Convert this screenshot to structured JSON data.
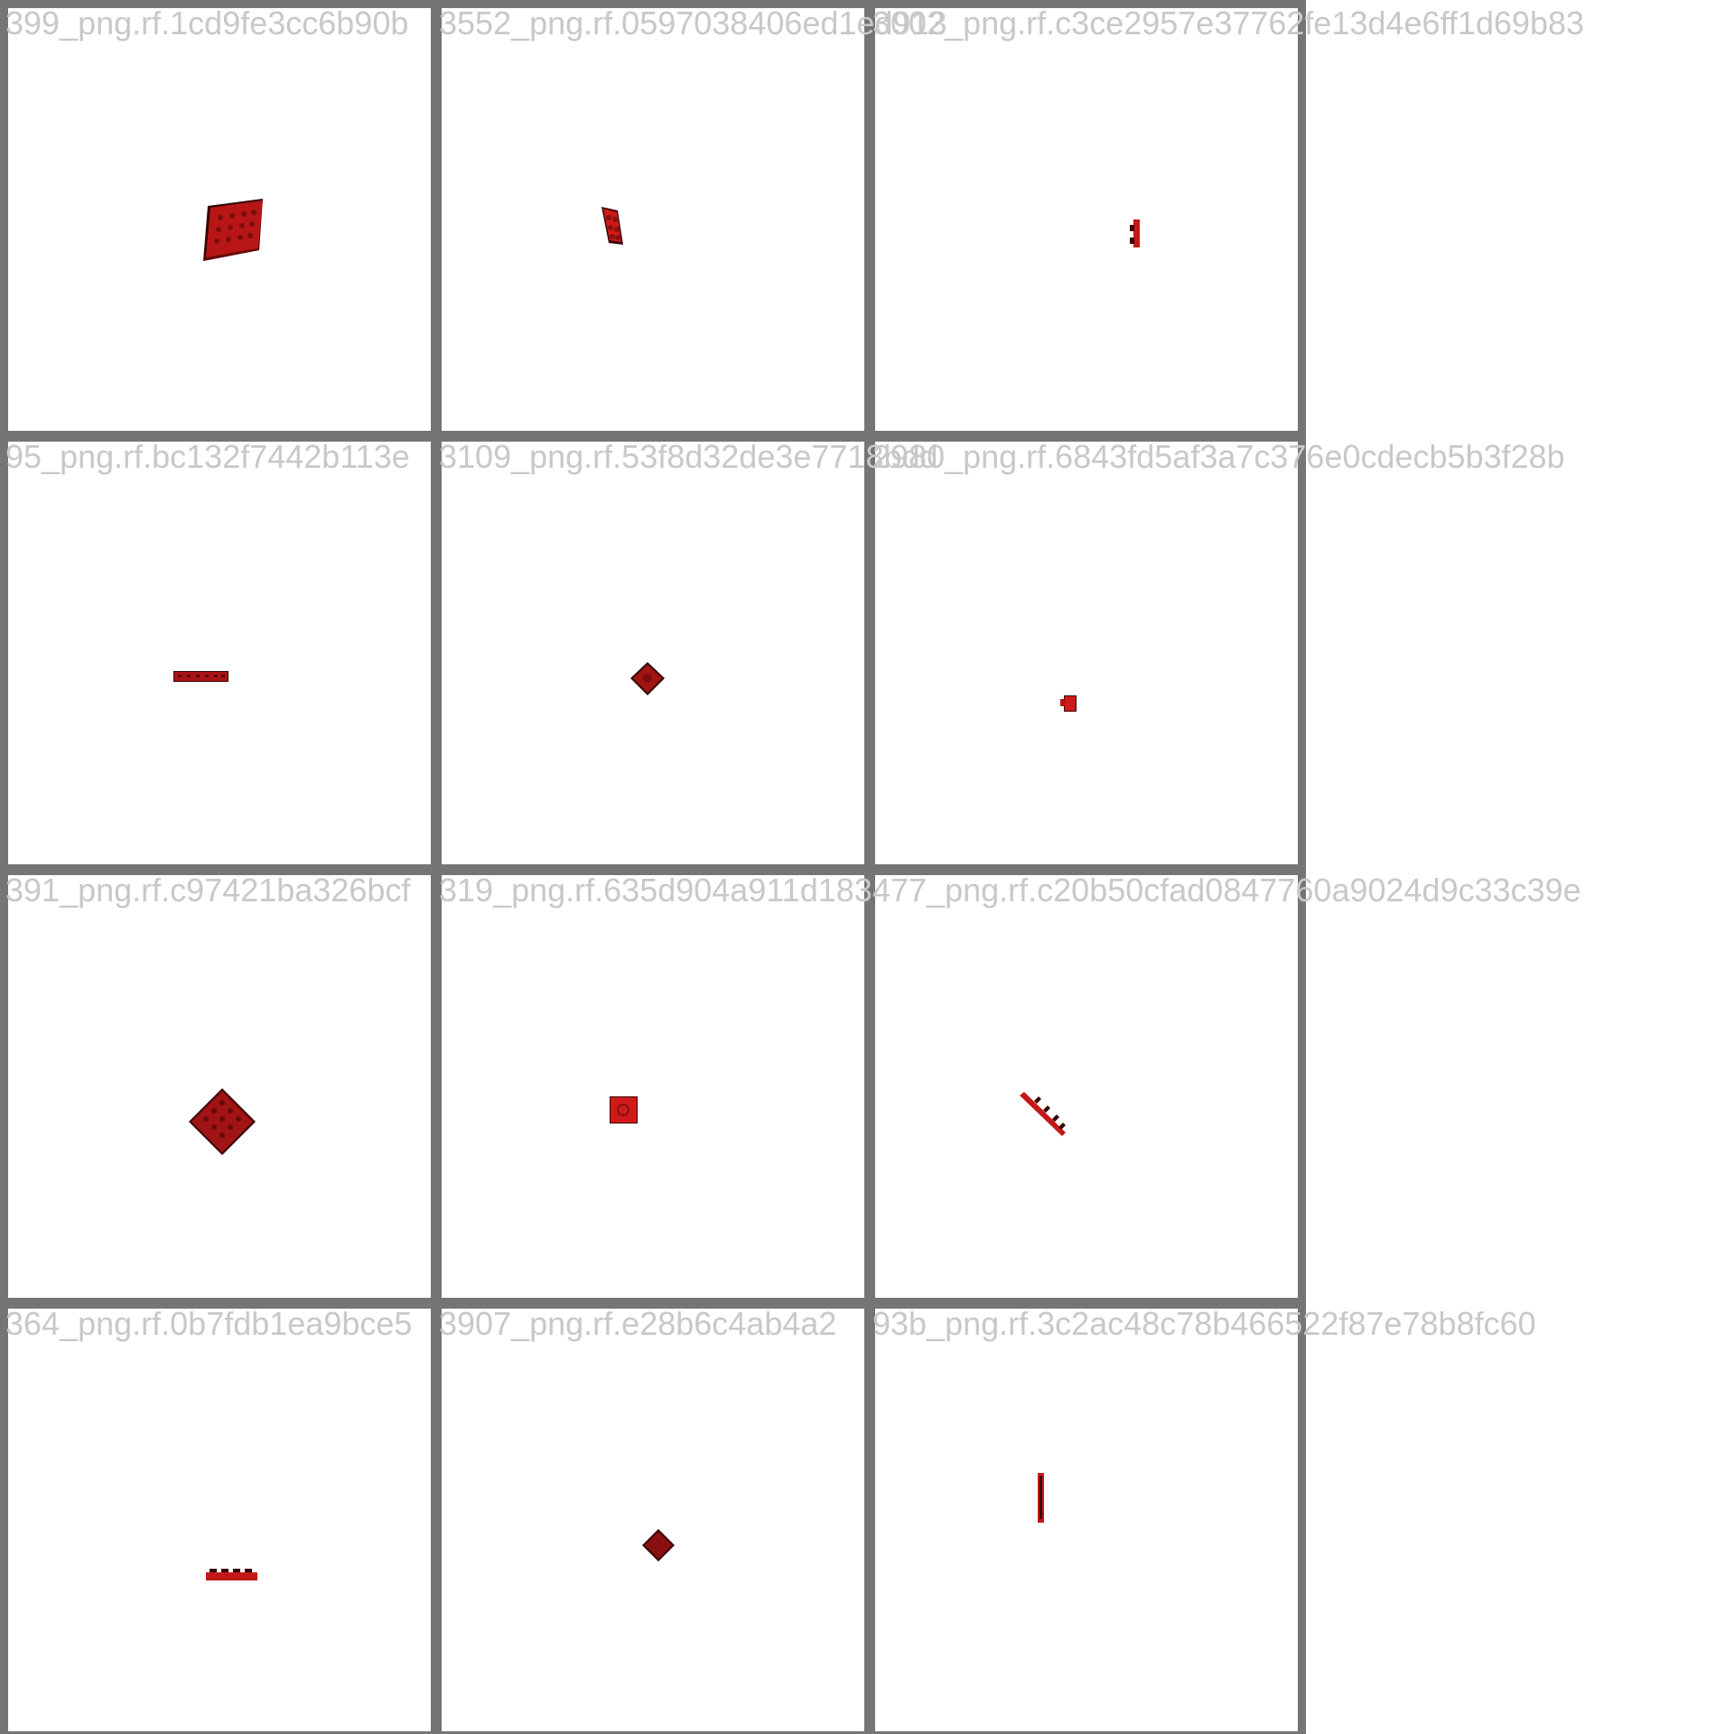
{
  "tiles": [
    {
      "caption": "399_png.rf.1cd9fe3cc6b90b",
      "object": "red-lego-plate-6x6"
    },
    {
      "caption": "3552_png.rf.0597038406ed1ed913",
      "object": "red-lego-plate-2x3"
    },
    {
      "caption": "3002_png.rf.c3ce2957e37762fe13d4e6ff1d69b83",
      "object": "red-lego-slope-side-view"
    },
    {
      "caption": "95_png.rf.bc132f7442b113e",
      "object": "red-lego-plate-side-view"
    },
    {
      "caption": "3109_png.rf.53f8d32de3e7718bdd",
      "object": "red-lego-tile-diamond"
    },
    {
      "caption": "2980_png.rf.6843fd5af3a7c376e0cdecb5b3f28b",
      "object": "red-lego-brick-small"
    },
    {
      "caption": "391_png.rf.c97421ba326bcf",
      "object": "red-lego-plate-diamond"
    },
    {
      "caption": "319_png.rf.635d904a911d183",
      "object": "red-lego-plate-2x2"
    },
    {
      "caption": "477_png.rf.c20b50cfad0847760a9024d9c33c39e",
      "object": "red-lego-plate-diagonal"
    },
    {
      "caption": "364_png.rf.0b7fdb1ea9bce5",
      "object": "red-lego-plate-1x4-side"
    },
    {
      "caption": "3907_png.rf.e28b6c4ab4a2",
      "object": "red-lego-tile-small-diamond"
    },
    {
      "caption": "93b_png.rf.3c2ac48c78b466522f87e78b8fc60",
      "object": "red-lego-plate-vertical-side"
    }
  ],
  "colors": {
    "frame": "#757575",
    "caption": "#c8c8c8",
    "brick": "#c41818",
    "brick_dark": "#7a0d0d",
    "brick_shadow": "#3a0505"
  }
}
